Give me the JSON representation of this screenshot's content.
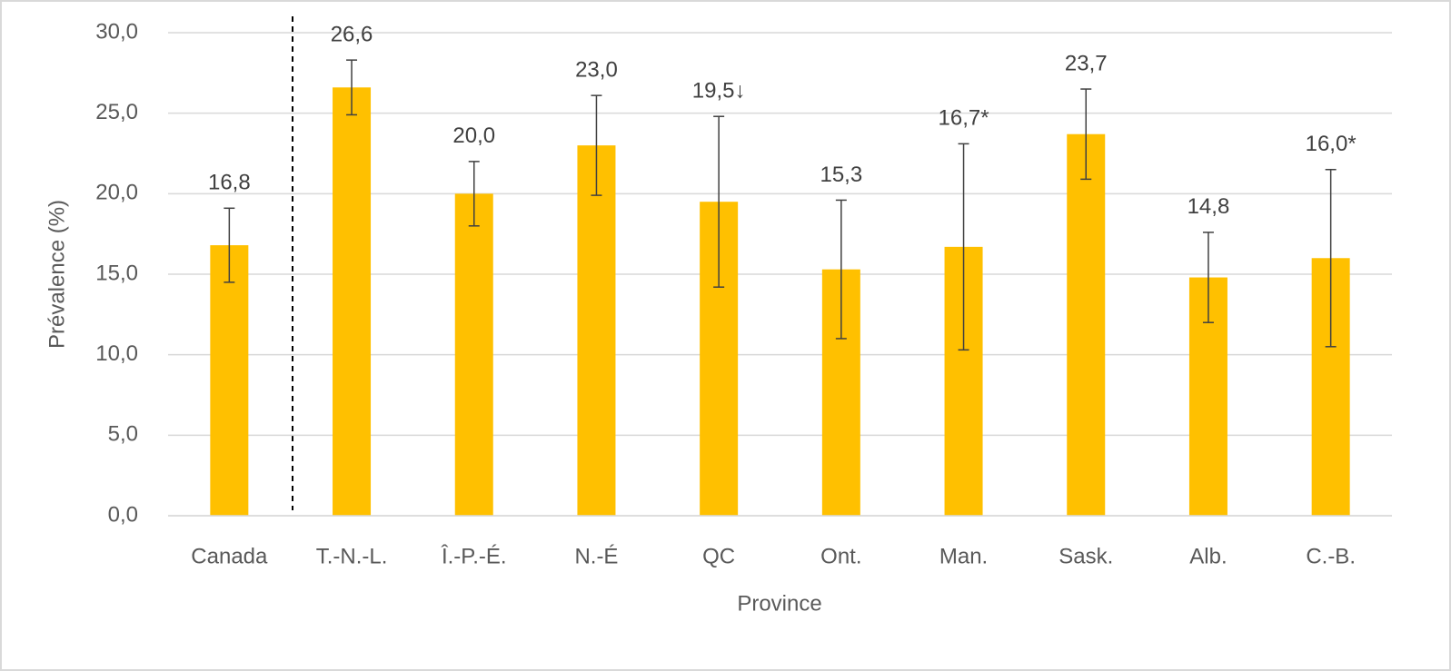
{
  "chart_data": {
    "type": "bar",
    "categories": [
      "Canada",
      "T.-N.-L.",
      "Î.-P.-É.",
      "N.-É",
      "QC",
      "Ont.",
      "Man.",
      "Sask.",
      "Alb.",
      "C.-B."
    ],
    "values": [
      16.8,
      26.6,
      20.0,
      23.0,
      19.5,
      15.3,
      16.7,
      23.7,
      14.8,
      16.0
    ],
    "value_labels": [
      "16,8",
      "26,6",
      "20,0",
      "23,0",
      "19,5↓",
      "15,3",
      "16,7*",
      "23,7",
      "14,8",
      "16,0*"
    ],
    "errors": [
      2.3,
      1.7,
      2.0,
      3.1,
      5.3,
      4.3,
      6.4,
      2.8,
      2.8,
      5.5
    ],
    "color": "#ffc000",
    "x_label": "Province",
    "y_label": "Prévalence (%)",
    "ylim": [
      0,
      30
    ],
    "yticks": [
      {
        "value": 0,
        "label": "0,0"
      },
      {
        "value": 5,
        "label": "5,0"
      },
      {
        "value": 10,
        "label": "10,0"
      },
      {
        "value": 15,
        "label": "15,0"
      },
      {
        "value": 20,
        "label": "20,0"
      },
      {
        "value": 25,
        "label": "25,0"
      },
      {
        "value": 30,
        "label": "30,0"
      }
    ],
    "grid": true
  }
}
